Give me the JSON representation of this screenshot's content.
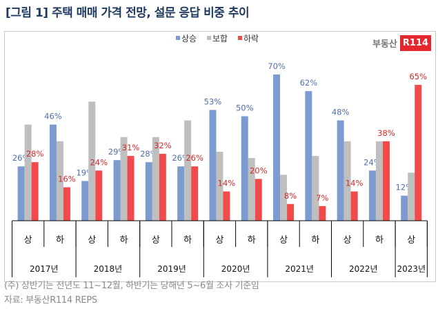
{
  "title": "[그림 1] 주택 매매 가격 전망, 설문 응답 비중 추이",
  "logo": {
    "text": "부동산",
    "badge": "R114"
  },
  "footnotes": [
    "(주) 상반기는 전년도 11~12월, 하반기는 당해년 5~6월 조사 기준임",
    "자료: 부동산R114 REPS"
  ],
  "chart_data": {
    "type": "bar",
    "title": "",
    "legend_position": "top",
    "grid": false,
    "ylim": [
      0,
      100
    ],
    "categories": [
      "상",
      "하",
      "상",
      "하",
      "상",
      "하",
      "상",
      "하",
      "상",
      "하",
      "상",
      "하",
      "상"
    ],
    "year_groups": [
      {
        "label": "2017년",
        "span": 2
      },
      {
        "label": "2018년",
        "span": 2
      },
      {
        "label": "2019년",
        "span": 2
      },
      {
        "label": "2020년",
        "span": 2
      },
      {
        "label": "2021년",
        "span": 2
      },
      {
        "label": "2022년",
        "span": 2
      },
      {
        "label": "2023년",
        "span": 1
      }
    ],
    "series": [
      {
        "name": "상승",
        "color": "#7b9bd1",
        "label_color": "#4f6fa8",
        "labeled": true,
        "values": [
          26,
          46,
          19,
          29,
          28,
          26,
          53,
          50,
          70,
          62,
          48,
          24,
          12
        ]
      },
      {
        "name": "보합",
        "color": "#bfbfbf",
        "labeled": false,
        "values": [
          46,
          38,
          57,
          40,
          40,
          48,
          33,
          30,
          22,
          31,
          38,
          38,
          23
        ]
      },
      {
        "name": "하락",
        "color": "#f24a4a",
        "label_color": "#d42a2a",
        "labeled": true,
        "values": [
          28,
          16,
          24,
          31,
          32,
          26,
          14,
          20,
          8,
          7,
          14,
          38,
          65
        ]
      }
    ]
  }
}
